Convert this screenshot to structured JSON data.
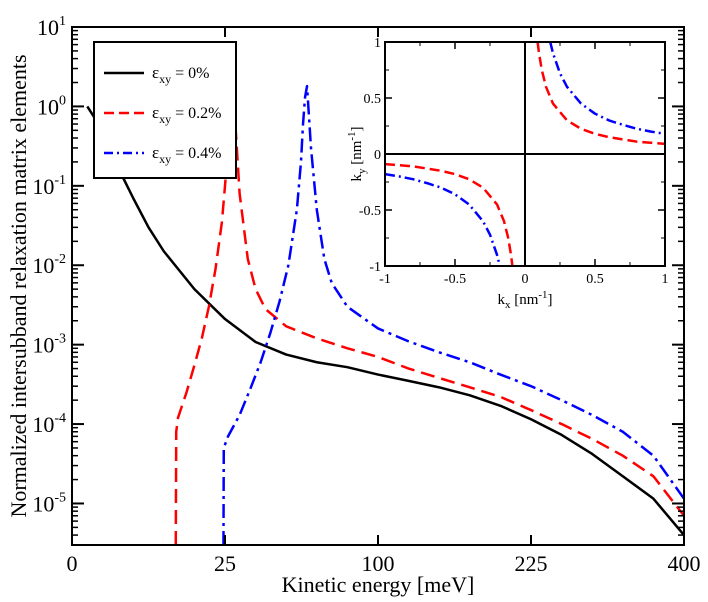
{
  "chart_data": [
    {
      "type": "line",
      "title": "",
      "xlabel": "Kinetic energy [meV]",
      "ylabel": "Normalized intersubband relaxation matrix elements",
      "x_scale": "sqrt",
      "y_scale": "log",
      "xlim": [
        0,
        400
      ],
      "ylim": [
        3e-06,
        10
      ],
      "x_ticks": [
        0,
        25,
        100,
        225,
        400
      ],
      "x_tick_labels": [
        "0",
        "25",
        "100",
        "225",
        "400"
      ],
      "y_ticks": [
        1e-05,
        0.0001,
        0.001,
        0.01,
        0.1,
        1,
        10
      ],
      "y_tick_labels": [
        {
          "base": "10",
          "exp": "-5"
        },
        {
          "base": "10",
          "exp": "-4"
        },
        {
          "base": "10",
          "exp": "-3"
        },
        {
          "base": "10",
          "exp": "-2"
        },
        {
          "base": "10",
          "exp": "-1"
        },
        {
          "base": "10",
          "exp": "0"
        },
        {
          "base": "10",
          "exp": "1"
        }
      ],
      "grid": false,
      "legend_position": "top-left",
      "series": [
        {
          "name": "εxy = 0%",
          "legend_symbol": "ε",
          "legend_sub": "xy",
          "legend_value": " = 0%",
          "color": "#000000",
          "dash": "solid",
          "x": [
            0.25,
            1,
            2,
            4,
            6.25,
            9,
            16,
            25,
            36,
            49,
            64,
            81,
            100,
            121,
            144,
            169,
            196,
            225,
            256,
            289,
            324,
            361,
            400
          ],
          "y": [
            1.0,
            0.5,
            0.2,
            0.07,
            0.03,
            0.015,
            0.005,
            0.0021,
            0.00108,
            0.00075,
            0.0006,
            0.00052,
            0.00042,
            0.00035,
            0.00029,
            0.00023,
            0.00017,
            0.000115,
            7.3e-05,
            4.2e-05,
            2.2e-05,
            1.15e-05,
            4e-06
          ]
        },
        {
          "name": "εxy = 0.2%",
          "legend_symbol": "ε",
          "legend_sub": "xy",
          "legend_value": " = 0.2%",
          "color": "#ff0000",
          "dash": "dashed",
          "x": [
            11.5,
            11.6,
            12,
            14,
            16,
            18,
            20,
            22,
            24,
            25,
            26,
            26.5,
            27,
            28,
            30,
            33,
            36,
            40,
            49,
            64,
            81,
            100,
            121,
            144,
            169,
            196,
            225,
            256,
            289,
            324,
            361,
            400
          ],
          "y": [
            3e-06,
            8e-05,
            0.00012,
            0.00025,
            0.00055,
            0.0012,
            0.003,
            0.009,
            0.035,
            0.1,
            0.3,
            0.7,
            1.3,
            1.2,
            0.08,
            0.012,
            0.005,
            0.0028,
            0.0017,
            0.0012,
            0.0009,
            0.0007,
            0.0005,
            0.00038,
            0.00029,
            0.00022,
            0.00015,
            0.0001,
            6.5e-05,
            4e-05,
            2.2e-05,
            7e-06
          ]
        },
        {
          "name": "εxy = 0.4%",
          "legend_symbol": "ε",
          "legend_sub": "xy",
          "legend_value": " = 0.4%",
          "color": "#0000ff",
          "dash": "dash-dot",
          "x": [
            24.5,
            24.6,
            26,
            30,
            34,
            38,
            42,
            46,
            50,
            54,
            56,
            57,
            58,
            59,
            61,
            64,
            68,
            72,
            81,
            100,
            121,
            144,
            169,
            196,
            225,
            256,
            289,
            324,
            361,
            400
          ],
          "y": [
            3e-06,
            5e-05,
            7e-05,
            0.00013,
            0.00028,
            0.0006,
            0.0014,
            0.0035,
            0.01,
            0.05,
            0.2,
            0.6,
            1.3,
            1.8,
            0.3,
            0.05,
            0.012,
            0.006,
            0.003,
            0.0016,
            0.0011,
            0.0008,
            0.0006,
            0.00042,
            0.0003,
            0.0002,
            0.00013,
            8e-05,
            4e-05,
            1.15e-05
          ]
        }
      ]
    },
    {
      "type": "line",
      "title": "",
      "xlabel": {
        "base": "k",
        "sub": "x",
        "unit_pre": " [nm",
        "unit_sup": "-1",
        "unit_post": "]"
      },
      "ylabel": {
        "base": "k",
        "sub": "y",
        "unit_pre": " [nm",
        "unit_sup": "-1",
        "unit_post": "]"
      },
      "xlim": [
        -1,
        1
      ],
      "ylim": [
        -1,
        1
      ],
      "x_ticks": [
        -1,
        -0.5,
        0,
        0.5,
        1
      ],
      "x_tick_labels": [
        "-1",
        "-0.5",
        "0",
        "0.5",
        "1"
      ],
      "y_ticks": [
        -1,
        -0.5,
        0,
        0.5,
        1
      ],
      "y_tick_labels": [
        "-1",
        "-0.5",
        "0",
        "0.5",
        "1"
      ],
      "grid": false,
      "legend_position": "none",
      "axes_lines": true,
      "series": [
        {
          "name": "",
          "color": "#ff0000",
          "dash": "dashed",
          "branches": [
            {
              "x": [
                0.09,
                0.1,
                0.12,
                0.15,
                0.2,
                0.3,
                0.4,
                0.5,
                0.6,
                0.7,
                0.8,
                0.9,
                1.0
              ],
              "y": [
                1.0,
                0.9,
                0.75,
                0.6,
                0.45,
                0.3,
                0.225,
                0.18,
                0.15,
                0.13,
                0.11,
                0.1,
                0.09
              ]
            },
            {
              "x": [
                -1.0,
                -0.9,
                -0.8,
                -0.7,
                -0.6,
                -0.5,
                -0.4,
                -0.3,
                -0.2,
                -0.15,
                -0.12,
                -0.1,
                -0.09
              ],
              "y": [
                -0.09,
                -0.1,
                -0.11,
                -0.13,
                -0.15,
                -0.18,
                -0.225,
                -0.3,
                -0.45,
                -0.6,
                -0.75,
                -0.9,
                -1.0
              ]
            }
          ]
        },
        {
          "name": "",
          "color": "#0000ff",
          "dash": "dash-dot",
          "branches": [
            {
              "x": [
                0.18,
                0.2,
                0.25,
                0.3,
                0.4,
                0.5,
                0.6,
                0.7,
                0.8,
                0.9,
                1.0
              ],
              "y": [
                1.0,
                0.9,
                0.72,
                0.6,
                0.45,
                0.36,
                0.3,
                0.26,
                0.225,
                0.2,
                0.18
              ]
            },
            {
              "x": [
                -1.0,
                -0.9,
                -0.8,
                -0.7,
                -0.6,
                -0.5,
                -0.4,
                -0.3,
                -0.25,
                -0.2,
                -0.18
              ],
              "y": [
                -0.18,
                -0.2,
                -0.225,
                -0.26,
                -0.3,
                -0.36,
                -0.45,
                -0.6,
                -0.72,
                -0.9,
                -1.0
              ]
            }
          ]
        }
      ]
    }
  ]
}
